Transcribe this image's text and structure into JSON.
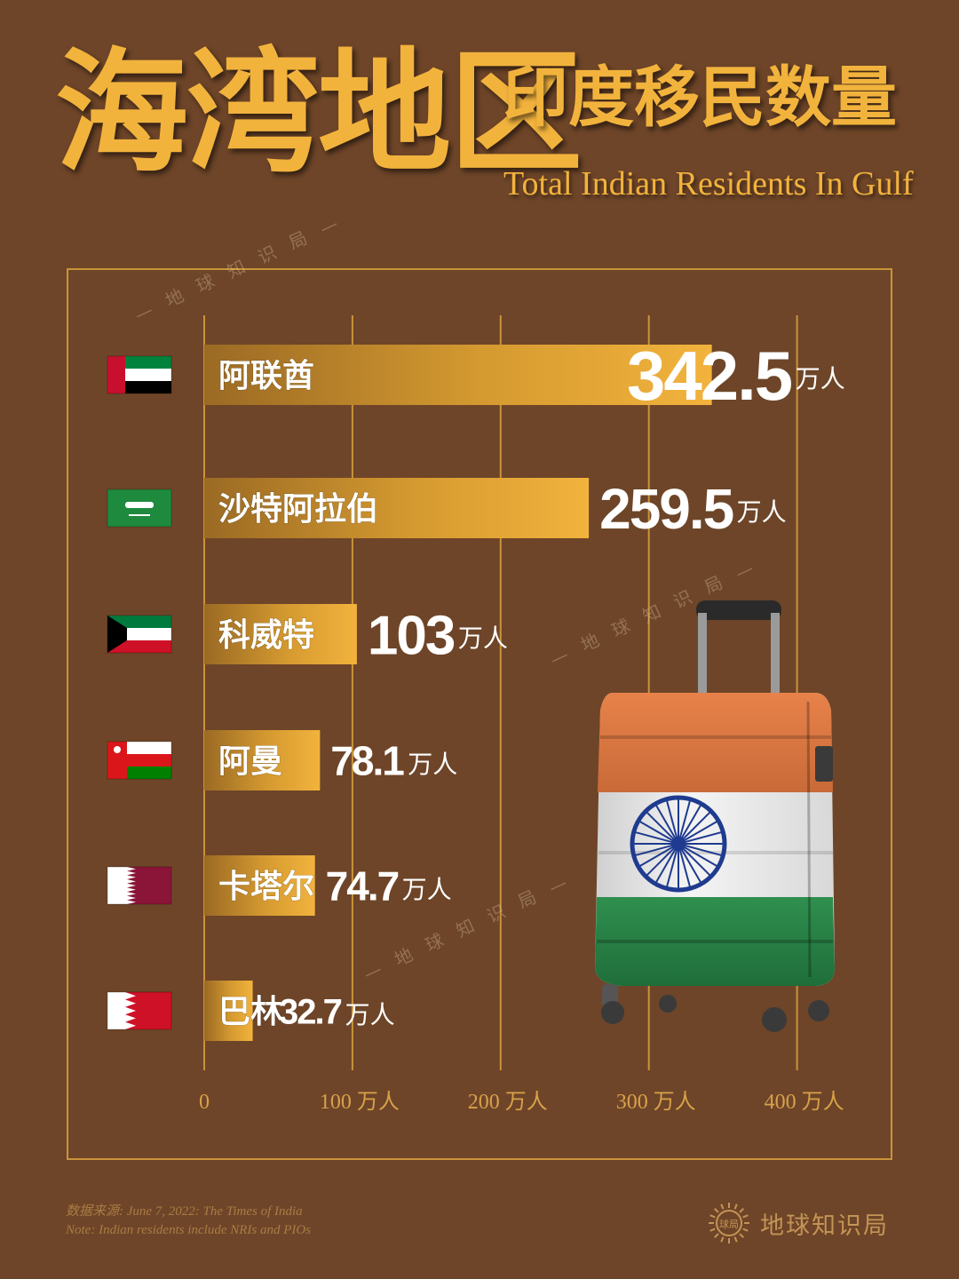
{
  "title": {
    "cn_main": "海湾地区",
    "cn_sub": "印度移民数量",
    "en": "Total Indian Residents In Gulf"
  },
  "watermark_text": "— 地 球 知 识 局 —",
  "source": {
    "line1": "数据来源:  June 7, 2022: The Times of India",
    "line2": "Note:  Indian residents include NRIs and PIOs"
  },
  "brand": {
    "name": "地球知识局",
    "logo_text": "球局"
  },
  "colors": {
    "background": "#6e4528",
    "accent": "#f2b33d",
    "bar_start": "#9b6a24",
    "bar_end": "#f2b33d",
    "grid": "#c9943a"
  },
  "chart_data": {
    "type": "bar",
    "orientation": "horizontal",
    "unit": "万人",
    "categories": [
      "阿联酋",
      "沙特阿拉伯",
      "科威特",
      "阿曼",
      "卡塔尔",
      "巴林"
    ],
    "values": [
      342.5,
      259.5,
      103,
      78.1,
      74.7,
      32.7
    ],
    "value_labels": [
      "342.5",
      "259.5",
      "103",
      "78.1",
      "74.7",
      "32.7"
    ],
    "flags": [
      "uae-flag",
      "saudi-flag",
      "kuwait-flag",
      "oman-flag",
      "qatar-flag",
      "bahrain-flag"
    ],
    "x_ticks": [
      0,
      100,
      200,
      300,
      400
    ],
    "x_tick_labels": [
      "0",
      "100 万人",
      "200 万人",
      "300 万人",
      "400 万人"
    ],
    "xlim": [
      0,
      400
    ],
    "grid": true
  }
}
